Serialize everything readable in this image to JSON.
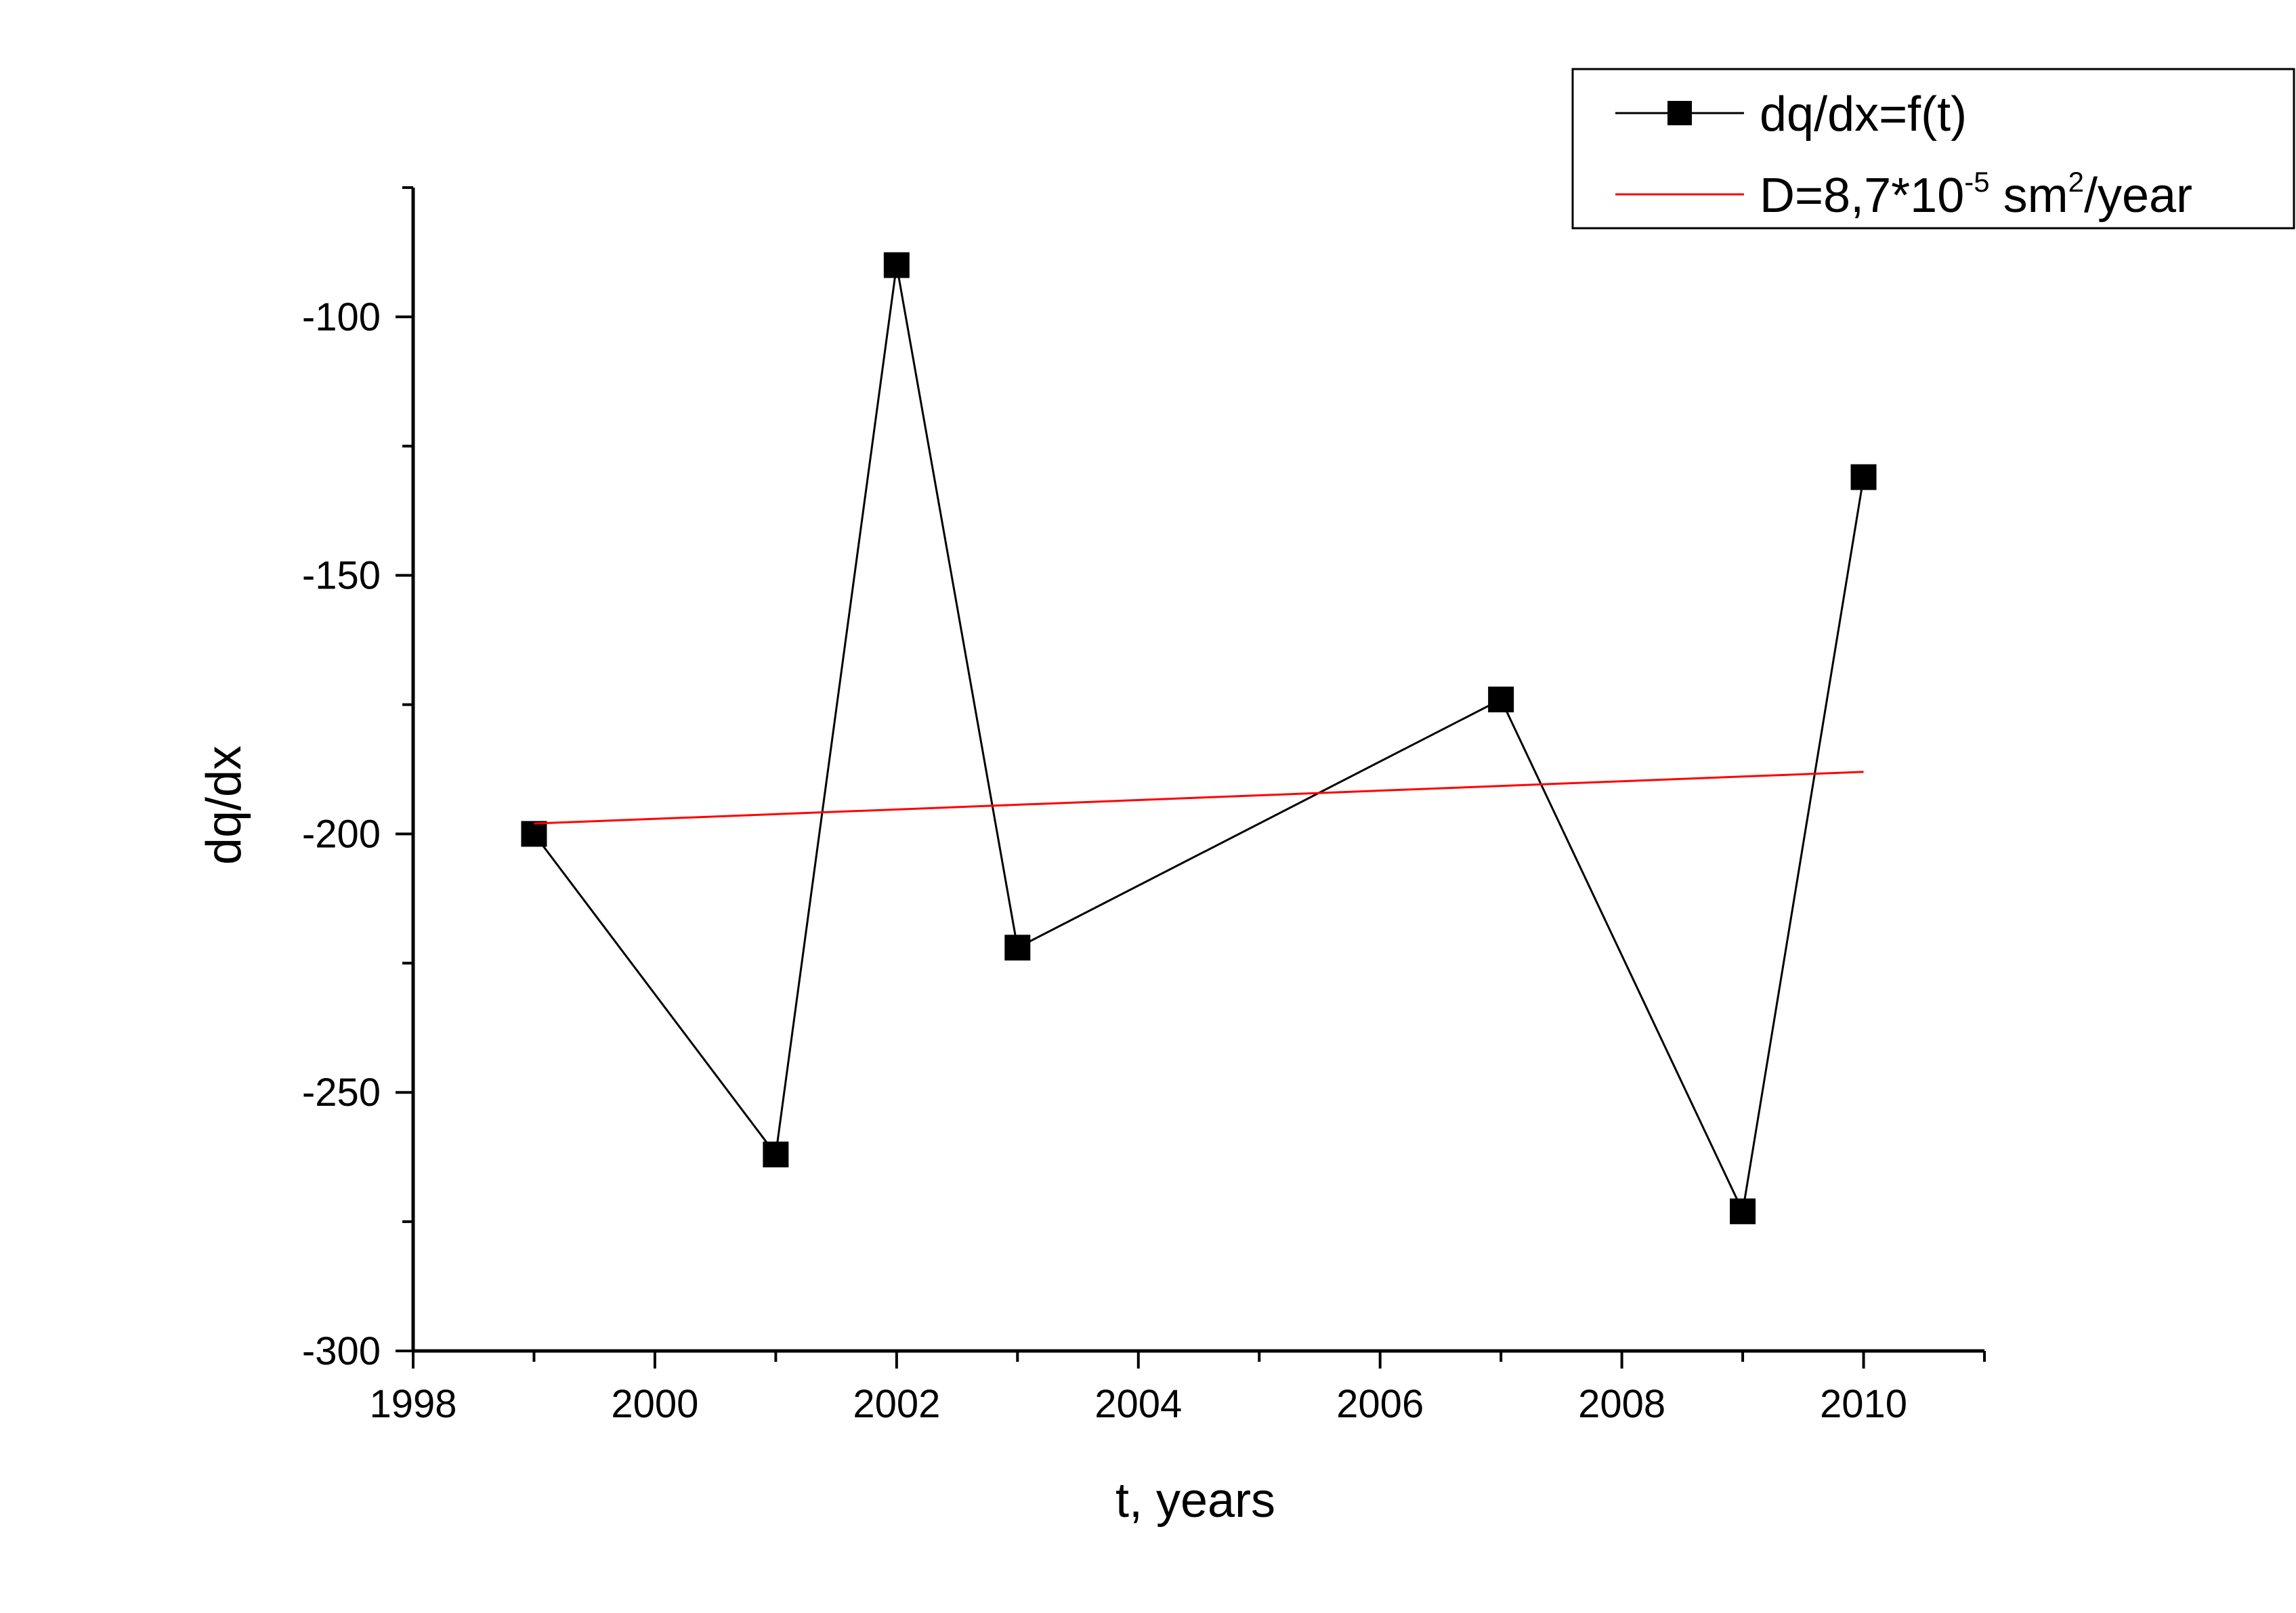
{
  "chart_data": {
    "type": "line",
    "xlabel": "t, years",
    "ylabel": "dq/dx",
    "xlim": [
      1998,
      2011
    ],
    "ylim": [
      -300,
      -75
    ],
    "x_ticks": [
      1998,
      2000,
      2002,
      2004,
      2006,
      2008,
      2010
    ],
    "y_ticks": [
      -100,
      -150,
      -200,
      -250,
      -300
    ],
    "x_minor_step": 1,
    "y_minor_step": 25,
    "grid": false,
    "legend_position": "top-right",
    "series": [
      {
        "name": "dq/dx=f(t)",
        "color": "#000000",
        "marker": "square",
        "x": [
          1999,
          2001,
          2002,
          2003,
          2007,
          2009,
          2010
        ],
        "y": [
          -200,
          -262,
          -90,
          -222,
          -174,
          -273,
          -131
        ]
      },
      {
        "name": "D=8,7*10-5 sm2/year",
        "color": "#ff0000",
        "marker": "none",
        "x": [
          1999,
          2010
        ],
        "y": [
          -198,
          -188
        ]
      }
    ],
    "legend": {
      "entry1": "dq/dx=f(t)",
      "entry2_a": "D=8,7*10",
      "entry2_sup1": "-5",
      "entry2_b": " sm",
      "entry2_sup2": "2",
      "entry2_c": "/year"
    }
  }
}
